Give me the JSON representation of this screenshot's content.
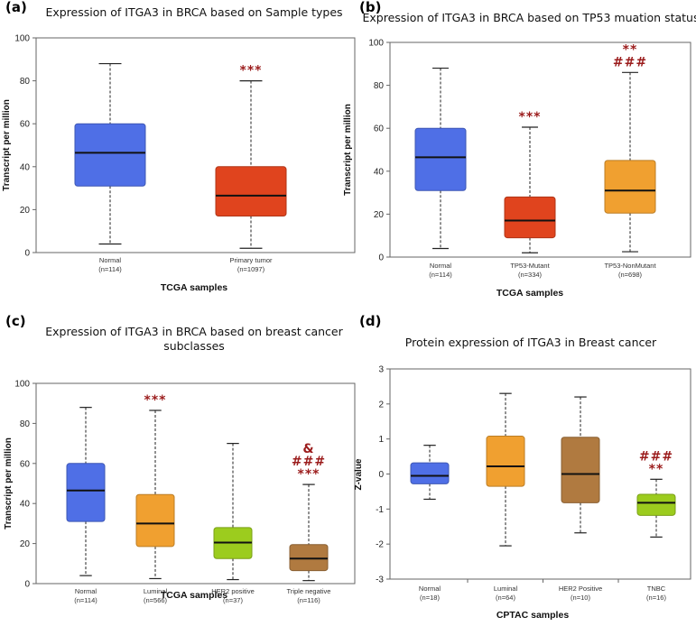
{
  "chart_data": [
    {
      "panel": "(a)",
      "type": "box",
      "title": [
        "Expression of ITGA3 in BRCA based on Sample types"
      ],
      "xlabel": "TCGA samples",
      "ylabel": "Transcript per million",
      "ylim": [
        0,
        100
      ],
      "yticks": [
        0,
        20,
        40,
        60,
        80,
        100
      ],
      "boxes": [
        {
          "name": "Normal",
          "n": "(n=114)",
          "min": 4,
          "q1": 31,
          "median": 46.5,
          "q3": 60,
          "max": 88,
          "color": "#4f6fe6",
          "sig": []
        },
        {
          "name": "Primary tumor",
          "n": "(n=1097)",
          "min": 2,
          "q1": 17,
          "median": 26.5,
          "q3": 40,
          "max": 80,
          "color": "#e0441e",
          "sig": [
            "***"
          ]
        }
      ]
    },
    {
      "panel": "(b)",
      "type": "box",
      "title": [
        "Expression of ITGA3 in BRCA based on TP53 muation status"
      ],
      "xlabel": "TCGA samples",
      "ylabel": "Transcript per million",
      "ylim": [
        0,
        100
      ],
      "yticks": [
        0,
        20,
        40,
        60,
        80,
        100
      ],
      "boxes": [
        {
          "name": "Normal",
          "n": "(n=114)",
          "min": 4,
          "q1": 31,
          "median": 46.5,
          "q3": 60,
          "max": 88,
          "color": "#4f6fe6",
          "sig": []
        },
        {
          "name": "TP53-Mutant",
          "n": "(n=334)",
          "min": 2,
          "q1": 9,
          "median": 17,
          "q3": 28,
          "max": 60.5,
          "color": "#e0441e",
          "sig": [
            "***"
          ]
        },
        {
          "name": "TP53-NonMutant",
          "n": "(n=698)",
          "min": 2.5,
          "q1": 20.5,
          "median": 31,
          "q3": 45,
          "max": 86,
          "color": "#f0a030",
          "sig": [
            "**",
            "###"
          ]
        }
      ]
    },
    {
      "panel": "(c)",
      "type": "box",
      "title": [
        "Expression of ITGA3 in BRCA based on breast cancer",
        "subclasses"
      ],
      "xlabel": "TCGA samples",
      "ylabel": "Transcript per million",
      "ylim": [
        0,
        100
      ],
      "yticks": [
        0,
        20,
        40,
        60,
        80,
        100
      ],
      "boxes": [
        {
          "name": "Normal",
          "n": "(n=114)",
          "min": 4,
          "q1": 31,
          "median": 46.5,
          "q3": 60,
          "max": 88,
          "color": "#4f6fe6",
          "sig": []
        },
        {
          "name": "Luminal",
          "n": "(n=566)",
          "min": 2.5,
          "q1": 18.5,
          "median": 30,
          "q3": 44.5,
          "max": 86.5,
          "color": "#f0a030",
          "sig": [
            "***"
          ]
        },
        {
          "name": "HER2 positive",
          "n": "(n=37)",
          "min": 2,
          "q1": 12.5,
          "median": 20.5,
          "q3": 28,
          "max": 70,
          "color": "#9ccc1e",
          "sig": []
        },
        {
          "name": "Triple negative",
          "n": "(n=116)",
          "min": 1.5,
          "q1": 6.5,
          "median": 12.5,
          "q3": 19.5,
          "max": 49.5,
          "color": "#b07a40",
          "sig": [
            "&",
            "###",
            "***"
          ]
        }
      ]
    },
    {
      "panel": "(d)",
      "type": "box",
      "title": [
        "Protein expression of ITGA3 in Breast cancer"
      ],
      "xlabel": "CPTAC samples",
      "ylabel": "Z-value",
      "ylim": [
        -3,
        3
      ],
      "yticks": [
        -3,
        -2,
        -1,
        0,
        1,
        2,
        3
      ],
      "boxes": [
        {
          "name": "Normal",
          "n": "(n=18)",
          "min": -0.72,
          "q1": -0.28,
          "median": -0.05,
          "q3": 0.32,
          "max": 0.82,
          "color": "#4f6fe6",
          "sig": []
        },
        {
          "name": "Luminal",
          "n": "(n=64)",
          "min": -2.05,
          "q1": -0.35,
          "median": 0.22,
          "q3": 1.08,
          "max": 2.3,
          "color": "#f0a030",
          "sig": []
        },
        {
          "name": "HER2 Positive",
          "n": "(n=10)",
          "min": -1.68,
          "q1": -0.82,
          "median": 0.0,
          "q3": 1.05,
          "max": 2.2,
          "color": "#b07a40",
          "sig": []
        },
        {
          "name": "TNBC",
          "n": "(n=16)",
          "min": -1.8,
          "q1": -1.18,
          "median": -0.82,
          "q3": -0.58,
          "max": -0.15,
          "color": "#9ccc1e",
          "sig": [
            "###",
            "**"
          ]
        }
      ]
    }
  ]
}
